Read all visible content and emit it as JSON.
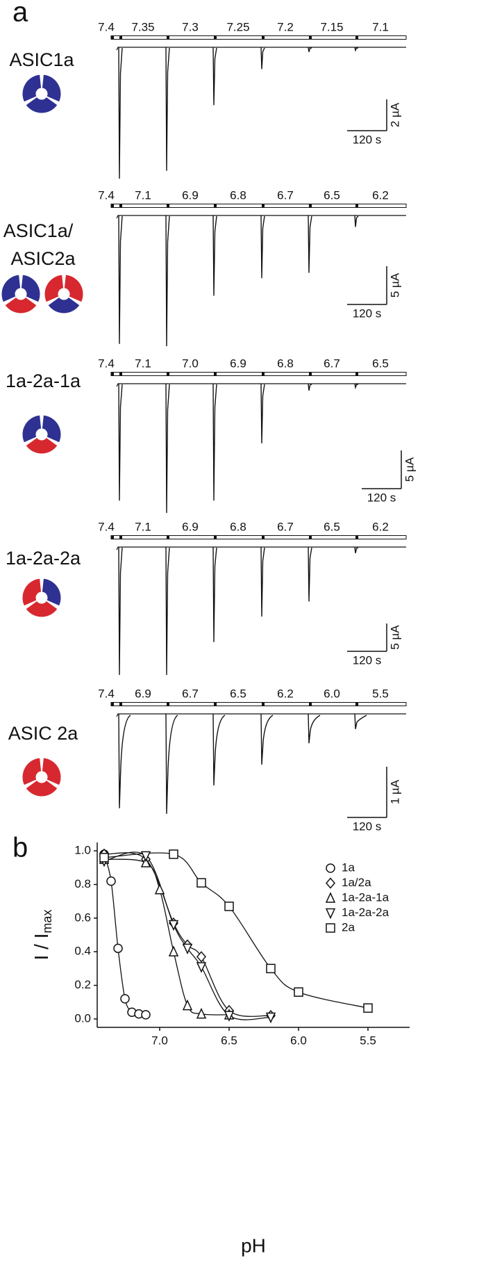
{
  "panel_labels": [
    "a",
    "b"
  ],
  "traces": [
    {
      "name_lines": [
        "ASIC1a"
      ],
      "ph_labels": [
        "7.4",
        "7.35",
        "7.3",
        "7.25",
        "7.2",
        "7.15",
        "7.1"
      ],
      "peaks_uA": [
        8.4,
        7.9,
        3.7,
        1.4,
        0.3,
        0.2
      ],
      "current_scale": {
        "value": 2,
        "label": "2 µA"
      },
      "time_scale": {
        "value": 120,
        "label": "120 s"
      }
    },
    {
      "name_lines": [
        "ASIC1a/",
        "ASIC2a"
      ],
      "ph_labels": [
        "7.4",
        "7.1",
        "6.9",
        "6.8",
        "6.7",
        "6.5",
        "6.2"
      ],
      "peaks_uA": [
        16.8,
        17.1,
        10.5,
        8.2,
        7.5,
        1.5
      ],
      "current_scale": {
        "value": 5,
        "label": "5 µA"
      },
      "time_scale": {
        "value": 120,
        "label": "120 s"
      }
    },
    {
      "name_lines": [
        "1a-2a-1a"
      ],
      "ph_labels": [
        "7.4",
        "7.1",
        "7.0",
        "6.9",
        "6.8",
        "6.7",
        "6.5"
      ],
      "peaks_uA": [
        15.3,
        16.9,
        15.3,
        7.8,
        0.9,
        0.5
      ],
      "current_scale": {
        "value": 5,
        "label": "5 µA"
      },
      "time_scale": {
        "value": 120,
        "label": "120 s"
      }
    },
    {
      "name_lines": [
        "1a-2a-2a"
      ],
      "ph_labels": [
        "7.4",
        "7.1",
        "6.9",
        "6.8",
        "6.7",
        "6.5",
        "6.2"
      ],
      "peaks_uA": [
        23,
        23,
        17.1,
        12.5,
        9.8,
        1.1
      ],
      "current_scale": {
        "value": 5,
        "label": "5 µA"
      },
      "time_scale": {
        "value": 120,
        "label": "120 s"
      }
    },
    {
      "name_lines": [
        "ASIC 2a"
      ],
      "ph_labels": [
        "7.4",
        "6.9",
        "6.7",
        "6.5",
        "6.2",
        "6.0",
        "5.5"
      ],
      "peaks_uA": [
        1.86,
        1.97,
        1.41,
        1.0,
        0.58,
        0.3
      ],
      "current_scale": {
        "value": 1,
        "label": "1 µA"
      },
      "time_scale": {
        "value": 120,
        "label": "120 s"
      }
    }
  ],
  "chart_data": {
    "type": "scatter",
    "xlabel": "pH",
    "ylabel": "I / I",
    "ylabel_subscript": "max",
    "xlim": [
      7.45,
      5.2
    ],
    "ylim": [
      -0.05,
      1.05
    ],
    "xticks": [
      {
        "value": 7,
        "label": "7.0"
      },
      6.5,
      {
        "value": 6,
        "label": "6.0"
      },
      5.5
    ],
    "yticks": [
      {
        "value": 0,
        "label": "0.0"
      },
      0.2,
      0.4,
      0.6,
      0.8,
      {
        "value": 1,
        "label": "1.0"
      }
    ],
    "series": [
      {
        "name": "1a",
        "marker": "circle",
        "color": "#111111",
        "x": [
          7.4,
          7.35,
          7.3,
          7.25,
          7.2,
          7.15,
          7.1
        ],
        "values": [
          0.98,
          0.82,
          0.42,
          0.12,
          0.04,
          0.03,
          0.025
        ]
      },
      {
        "name": "1a/2a",
        "marker": "diamond",
        "color": "#111111",
        "x": [
          7.4,
          7.1,
          6.9,
          6.8,
          6.7,
          6.5,
          6.2
        ],
        "values": [
          0.98,
          0.95,
          0.57,
          0.44,
          0.37,
          0.05,
          0.02
        ]
      },
      {
        "name": "1a-2a-1a",
        "marker": "triangle-up",
        "color": "#111111",
        "x": [
          7.4,
          7.1,
          7.0,
          6.9,
          6.8,
          6.7,
          6.5
        ],
        "values": [
          0.95,
          0.93,
          0.77,
          0.4,
          0.08,
          0.03,
          0.025
        ]
      },
      {
        "name": "1a-2a-2a",
        "marker": "triangle-down",
        "color": "#111111",
        "x": [
          7.4,
          7.1,
          6.9,
          6.8,
          6.7,
          6.5,
          6.2
        ],
        "values": [
          0.94,
          0.97,
          0.56,
          0.42,
          0.31,
          0.02,
          0.01
        ]
      },
      {
        "name": "2a",
        "marker": "square",
        "color": "#111111",
        "x": [
          7.4,
          6.9,
          6.7,
          6.5,
          6.2,
          6.0,
          5.5
        ],
        "values": [
          0.96,
          0.98,
          0.81,
          0.67,
          0.3,
          0.16,
          0.065
        ]
      }
    ]
  }
}
